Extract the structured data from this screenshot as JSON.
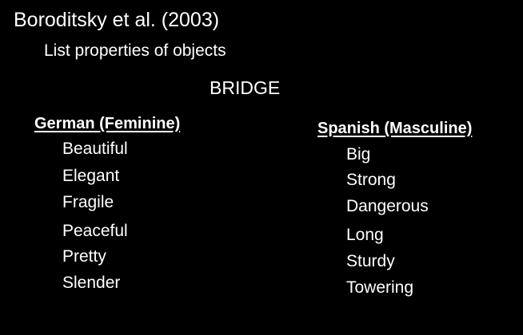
{
  "slide": {
    "title": "Boroditsky et al. (2003)",
    "subtitle": "List properties of objects",
    "object_word": "BRIDGE"
  },
  "columns": [
    {
      "heading": "German (Feminine) ",
      "items": [
        "Beautiful",
        "Elegant",
        "Fragile",
        "Peaceful",
        "Pretty",
        "Slender"
      ]
    },
    {
      "heading": "Spanish (Masculine) ",
      "items": [
        "Big",
        "Strong",
        "Dangerous",
        "Long",
        "Sturdy",
        "Towering"
      ]
    }
  ],
  "colors": {
    "background": "#000000",
    "text": "#ffffff"
  }
}
